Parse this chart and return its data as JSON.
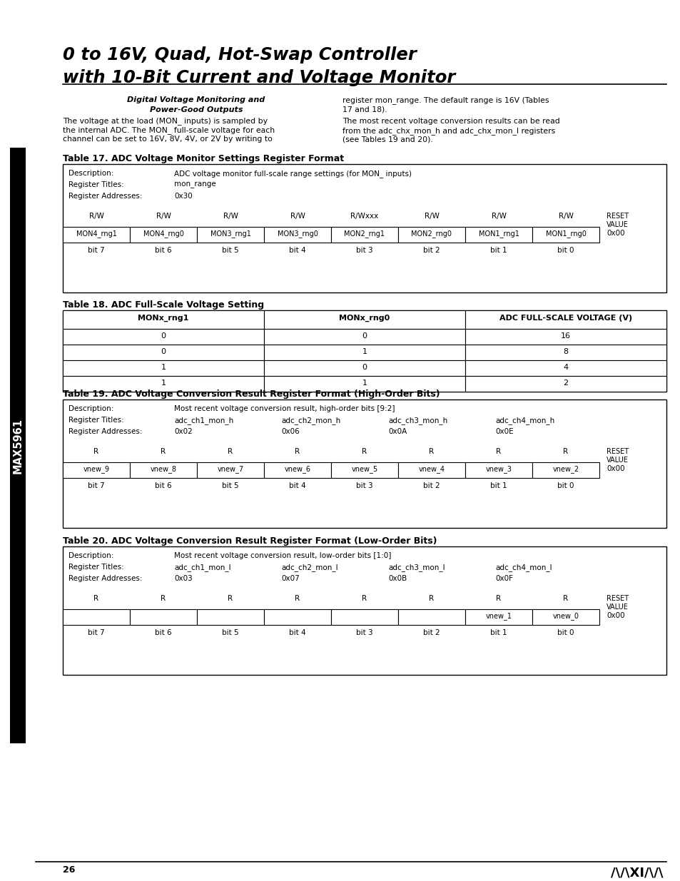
{
  "title_line1": "0 to 16V, Quad, Hot-Swap Controller",
  "title_line2": "with 10-Bit Current and Voltage Monitor",
  "sidebar_text": "MAX5961",
  "body_subtitle1": "Digital Voltage Monitoring and",
  "body_subtitle2": "Power-Good Outputs",
  "body_text_left1": "The voltage at the load (MON_ inputs) is sampled by",
  "body_text_left2": "the internal ADC. The MON_ full-scale voltage for each",
  "body_text_left3": "channel can be set to 16V, 8V, 4V, or 2V by writing to",
  "body_text_right1": "register mon_range. The default range is 16V (Tables",
  "body_text_right2": "17 and 18).",
  "body_text_right3": "The most recent voltage conversion results can be read",
  "body_text_right4": "from the adc_chx_mon_h and adc_chx_mon_l registers",
  "body_text_right5": "(see Tables 19 and 20).",
  "table17_title": "Table 17. ADC Voltage Monitor Settings Register Format",
  "table17_desc_label": "Description:",
  "table17_desc_value": "ADC voltage monitor full-scale range settings (for MON_ inputs)",
  "table17_reg_label": "Register Titles:",
  "table17_reg_value": "mon_range",
  "table17_addr_label": "Register Addresses:",
  "table17_addr_value": "0x30",
  "table17_rw_labels": [
    "R/W",
    "R/W",
    "R/W",
    "R/W",
    "R/Wxxx",
    "R/W",
    "R/W",
    "R/W"
  ],
  "table17_cells": [
    "MON4_rng1",
    "MON4_rng0",
    "MON3_rng1",
    "MON3_rng0",
    "MON2_rng1",
    "MON2_rng0",
    "MON1_rng1",
    "MON1_rng0"
  ],
  "table17_reset_value": "0x00",
  "table17_bits": [
    "bit 7",
    "bit 6",
    "bit 5",
    "bit 4",
    "bit 3",
    "bit 2",
    "bit 1",
    "bit 0"
  ],
  "table18_title": "Table 18. ADC Full-Scale Voltage Setting",
  "table18_headers": [
    "MONx_rng1",
    "MONx_rng0",
    "ADC FULL-SCALE VOLTAGE (V)"
  ],
  "table18_rows": [
    [
      "0",
      "0",
      "16"
    ],
    [
      "0",
      "1",
      "8"
    ],
    [
      "1",
      "0",
      "4"
    ],
    [
      "1",
      "1",
      "2"
    ]
  ],
  "table19_title": "Table 19. ADC Voltage Conversion Result Register Format (High-Order Bits)",
  "table19_desc_label": "Description:",
  "table19_desc_value": "Most recent voltage conversion result, high-order bits [9:2]",
  "table19_reg_label": "Register Titles:",
  "table19_reg_titles": [
    "adc_ch1_mon_h",
    "adc_ch2_mon_h",
    "adc_ch3_mon_h",
    "adc_ch4_mon_h"
  ],
  "table19_addr_label": "Register Addresses:",
  "table19_addr_values": [
    "0x02",
    "0x06",
    "0x0A",
    "0x0E"
  ],
  "table19_rw_labels": [
    "R",
    "R",
    "R",
    "R",
    "R",
    "R",
    "R",
    "R"
  ],
  "table19_cells": [
    "vnew_9",
    "vnew_8",
    "vnew_7",
    "vnew_6",
    "vnew_5",
    "vnew_4",
    "vnew_3",
    "vnew_2"
  ],
  "table19_reset_value": "0x00",
  "table19_bits": [
    "bit 7",
    "bit 6",
    "bit 5",
    "bit 4",
    "bit 3",
    "bit 2",
    "bit 1",
    "bit 0"
  ],
  "table20_title": "Table 20. ADC Voltage Conversion Result Register Format (Low-Order Bits)",
  "table20_desc_label": "Description:",
  "table20_desc_value": "Most recent voltage conversion result, low-order bits [1:0]",
  "table20_reg_label": "Register Titles:",
  "table20_reg_titles": [
    "adc_ch1_mon_l",
    "adc_ch2_mon_l",
    "adc_ch3_mon_l",
    "adc_ch4_mon_l"
  ],
  "table20_addr_label": "Register Addresses:",
  "table20_addr_values": [
    "0x03",
    "0x07",
    "0x0B",
    "0x0F"
  ],
  "table20_rw_labels": [
    "R",
    "R",
    "R",
    "R",
    "R",
    "R",
    "R",
    "R"
  ],
  "table20_cells": [
    "",
    "",
    "",
    "",
    "",
    "",
    "vnew_1",
    "vnew_0"
  ],
  "table20_reset_value": "0x00",
  "table20_bits": [
    "bit 7",
    "bit 6",
    "bit 5",
    "bit 4",
    "bit 3",
    "bit 2",
    "bit 1",
    "bit 0"
  ],
  "page_number": "26"
}
